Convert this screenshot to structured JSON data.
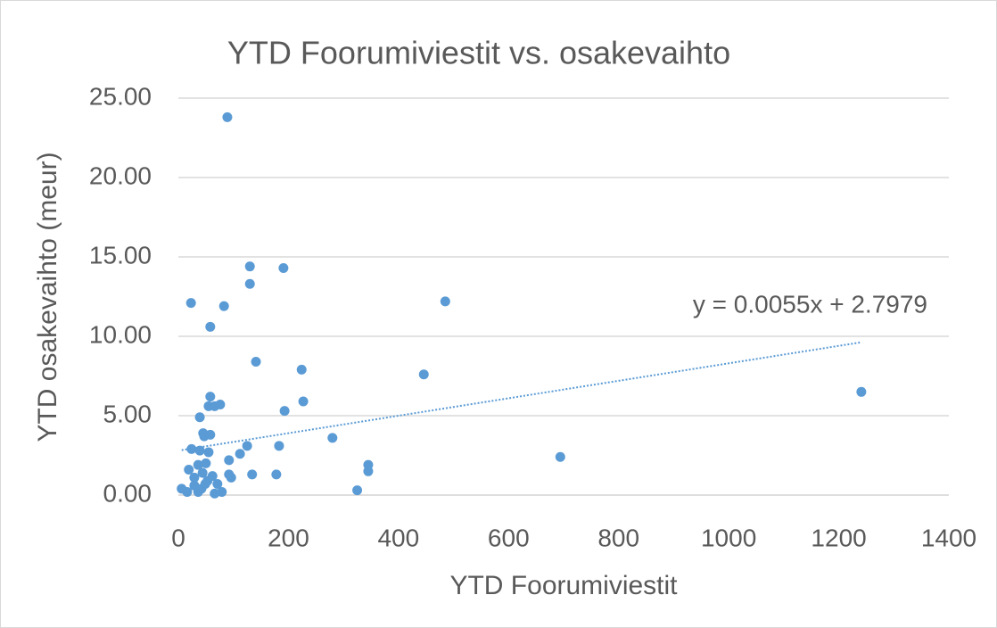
{
  "chart_data": {
    "type": "scatter",
    "title": "YTD Foorumiviestit vs. osakevaihto",
    "x_label": "YTD Foorumiviestit",
    "y_label": "YTD osakevaihto (meur)",
    "series": [
      {
        "color": "#5b9bd5",
        "x": [
          89,
          130,
          191,
          23,
          83,
          130,
          485,
          58,
          141,
          224,
          446,
          1241,
          58,
          76,
          55,
          66,
          227,
          193,
          39,
          45,
          58,
          47,
          280,
          125,
          183,
          24,
          55,
          39,
          112,
          694,
          92,
          345,
          345,
          50,
          36,
          19,
          134,
          178,
          92,
          96,
          62,
          44,
          29,
          71,
          49,
          6,
          16,
          29,
          36,
          79,
          66,
          325,
          42,
          53
        ],
        "values": [
          23.8,
          14.4,
          14.3,
          12.1,
          11.9,
          13.3,
          12.2,
          10.6,
          8.4,
          7.9,
          7.6,
          6.5,
          6.2,
          5.7,
          5.6,
          5.6,
          5.9,
          5.3,
          4.9,
          3.9,
          3.8,
          3.7,
          3.6,
          3.1,
          3.1,
          2.9,
          2.7,
          2.8,
          2.6,
          2.4,
          2.2,
          1.9,
          1.5,
          2.0,
          1.9,
          1.6,
          1.3,
          1.3,
          1.3,
          1.1,
          1.2,
          1.4,
          1.1,
          0.7,
          0.7,
          0.4,
          0.2,
          0.6,
          0.2,
          0.2,
          0.1,
          0.3,
          0.4,
          0.9
        ]
      }
    ],
    "trendline": {
      "label": "y = 0.0055x + 2.7979",
      "slope": 0.0055,
      "intercept": 2.7979,
      "color": "#5b9bd5"
    },
    "xlim": [
      0,
      1400
    ],
    "xticks": [
      0,
      200,
      400,
      600,
      800,
      1000,
      1200,
      1400
    ],
    "ylim": [
      0,
      25
    ],
    "yticks": [
      {
        "value": 0,
        "label": "0.00"
      },
      {
        "value": 5,
        "label": "5.00"
      },
      {
        "value": 10,
        "label": "10.00"
      },
      {
        "value": 15,
        "label": "15.00"
      },
      {
        "value": 20,
        "label": "20.00"
      },
      {
        "value": 25,
        "label": "25.00"
      }
    ],
    "grid": true
  }
}
